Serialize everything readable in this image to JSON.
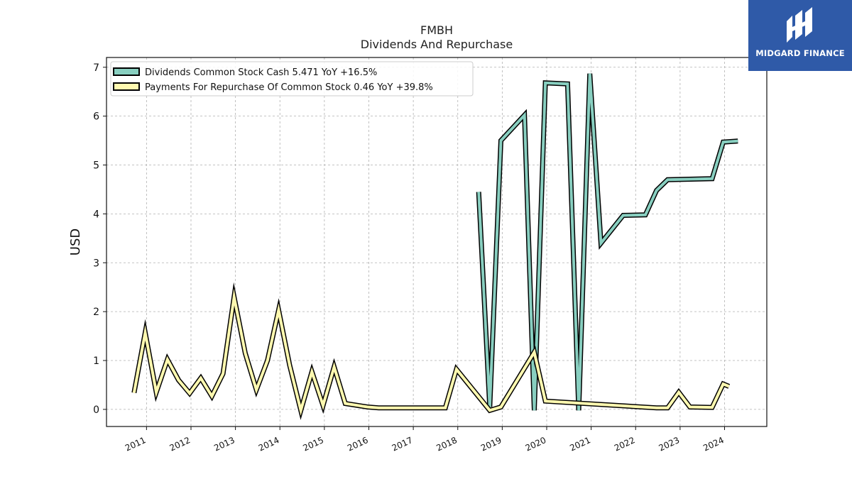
{
  "chart_data": {
    "type": "line",
    "title": "FMBH",
    "subtitle": "Dividends And Repurchase",
    "ylabel": "USD",
    "xlabel": "",
    "xlim": [
      2010.1,
      2024.95
    ],
    "ylim": [
      -0.35,
      7.2
    ],
    "yticks": [
      0,
      1,
      2,
      3,
      4,
      5,
      6,
      7
    ],
    "xticks": [
      2011,
      2012,
      2013,
      2014,
      2015,
      2016,
      2017,
      2018,
      2019,
      2020,
      2021,
      2022,
      2023,
      2024
    ],
    "grid": true,
    "legend_position": "top-left",
    "series": [
      {
        "name": "Dividends Common Stock Cash  5.471 YoY +16.5%",
        "color": "#88cfc0",
        "points": [
          [
            2018.47,
            4.45
          ],
          [
            2018.72,
            0.05
          ],
          [
            2018.97,
            5.5
          ],
          [
            2019.5,
            6.02
          ],
          [
            2019.72,
            -0.02
          ],
          [
            2019.97,
            6.68
          ],
          [
            2020.47,
            6.66
          ],
          [
            2020.72,
            -0.02
          ],
          [
            2020.97,
            6.87
          ],
          [
            2021.22,
            3.4
          ],
          [
            2021.72,
            3.97
          ],
          [
            2022.22,
            3.98
          ],
          [
            2022.47,
            4.48
          ],
          [
            2022.72,
            4.7
          ],
          [
            2023.72,
            4.72
          ],
          [
            2023.97,
            5.47
          ],
          [
            2024.3,
            5.49
          ]
        ]
      },
      {
        "name": "Payments For Repurchase Of Common Stock  0.46 YoY +39.8%",
        "color": "#fff9b0",
        "points": [
          [
            2010.72,
            0.34
          ],
          [
            2010.97,
            1.57
          ],
          [
            2011.22,
            0.35
          ],
          [
            2011.47,
            1.02
          ],
          [
            2011.72,
            0.6
          ],
          [
            2011.97,
            0.33
          ],
          [
            2012.22,
            0.64
          ],
          [
            2012.47,
            0.27
          ],
          [
            2012.72,
            0.73
          ],
          [
            2012.97,
            2.3
          ],
          [
            2013.22,
            1.15
          ],
          [
            2013.47,
            0.4
          ],
          [
            2013.72,
            1.0
          ],
          [
            2013.97,
            2.03
          ],
          [
            2014.22,
            0.9
          ],
          [
            2014.47,
            -0.02
          ],
          [
            2014.72,
            0.77
          ],
          [
            2014.97,
            0.08
          ],
          [
            2015.22,
            0.87
          ],
          [
            2015.47,
            0.12
          ],
          [
            2015.97,
            0.05
          ],
          [
            2016.22,
            0.03
          ],
          [
            2017.72,
            0.03
          ],
          [
            2017.97,
            0.82
          ],
          [
            2018.72,
            -0.02
          ],
          [
            2018.97,
            0.05
          ],
          [
            2019.72,
            1.17
          ],
          [
            2019.97,
            0.17
          ],
          [
            2022.47,
            0.03
          ],
          [
            2022.72,
            0.03
          ],
          [
            2022.97,
            0.35
          ],
          [
            2023.22,
            0.05
          ],
          [
            2023.72,
            0.04
          ],
          [
            2023.97,
            0.52
          ],
          [
            2024.1,
            0.47
          ]
        ]
      }
    ]
  },
  "brand": {
    "name": "MIDGARD FINANCE",
    "bg_color": "#2f5aa8"
  }
}
